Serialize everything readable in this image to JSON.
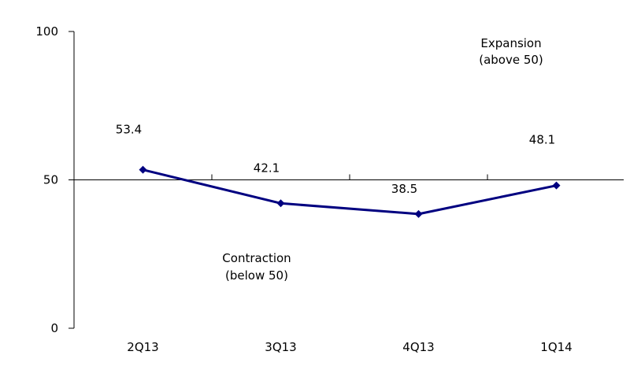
{
  "chart_data": {
    "type": "line",
    "title": "",
    "xlabel": "",
    "ylabel": "",
    "categories": [
      "2Q13",
      "3Q13",
      "4Q13",
      "1Q14"
    ],
    "series": [
      {
        "values": [
          53.4,
          42.1,
          38.5,
          48.1
        ],
        "color": "#000080"
      }
    ],
    "data_labels": [
      "53.4",
      "42.1",
      "38.5",
      "48.1"
    ],
    "ylim": [
      0,
      100
    ],
    "yticks": [
      0,
      50,
      100
    ],
    "ytick_labels": [
      "0",
      "50",
      "100"
    ],
    "reference_line": 50,
    "grid": false,
    "legend": "none",
    "annotations": {
      "expansion_line1": "Expansion",
      "expansion_line2": "(above 50)",
      "contraction_line1": "Contraction",
      "contraction_line2": "(below 50)"
    }
  }
}
